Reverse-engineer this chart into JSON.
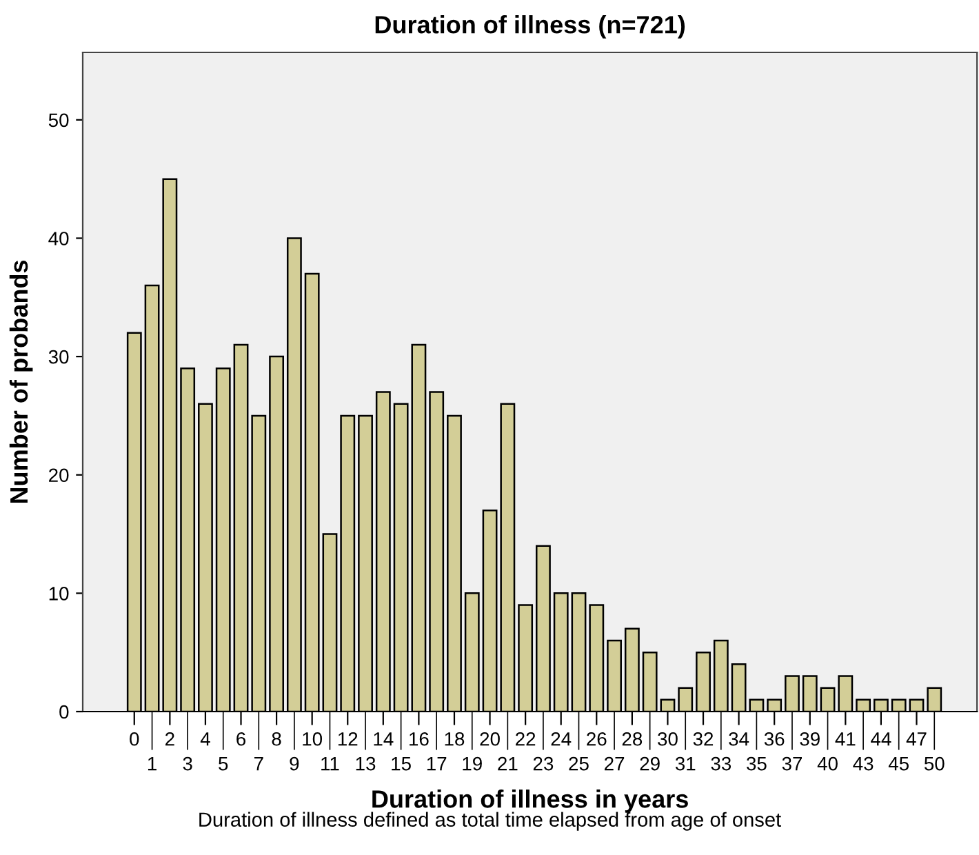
{
  "chart_data": {
    "type": "bar",
    "title": "Duration of illness (n=721)",
    "xlabel": "Duration of illness in years",
    "ylabel": "Number of probands",
    "annotations": [
      "Duration of illness defined as total time elapsed from age of onset"
    ],
    "categories": [
      "0",
      "1",
      "2",
      "3",
      "4",
      "5",
      "6",
      "7",
      "8",
      "9",
      "10",
      "11",
      "12",
      "13",
      "14",
      "15",
      "16",
      "17",
      "18",
      "19",
      "20",
      "21",
      "22",
      "23",
      "24",
      "25",
      "26",
      "27",
      "28",
      "29",
      "30",
      "31",
      "32",
      "33",
      "34",
      "35",
      "36",
      "37",
      "39",
      "40",
      "41",
      "43",
      "44",
      "45",
      "47",
      "50"
    ],
    "values": [
      32,
      36,
      45,
      29,
      26,
      29,
      31,
      25,
      30,
      40,
      37,
      15,
      25,
      25,
      27,
      26,
      31,
      27,
      25,
      10,
      17,
      26,
      9,
      14,
      10,
      10,
      9,
      6,
      7,
      5,
      1,
      2,
      5,
      6,
      4,
      1,
      1,
      3,
      3,
      2,
      3,
      1,
      1,
      1,
      1,
      2
    ],
    "color": "#d3ce97",
    "ylim": [
      0,
      55.7
    ],
    "yticks": [
      0,
      10,
      20,
      30,
      40,
      50
    ],
    "grid": false,
    "legend": false
  }
}
